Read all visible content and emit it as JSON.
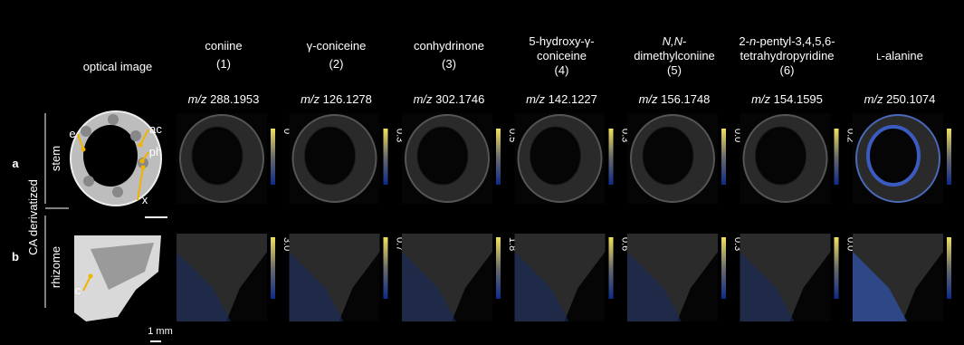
{
  "panel_labels": [
    "a",
    "b"
  ],
  "group_label": "CA derivatized",
  "optical_header": "optical image",
  "mz_prefix": "m/z",
  "rows": [
    {
      "label": "stem",
      "colorbar_max": [
        "0",
        "0.3",
        "0.5",
        "0.3",
        "0.0",
        "0.2"
      ]
    },
    {
      "label": "rhizome",
      "colorbar_max": [
        "3.0",
        "0.7",
        "1.8",
        "0.6",
        "0.3",
        "0.0"
      ]
    }
  ],
  "columns": [
    {
      "name": [
        [
          {
            "text": "coniine"
          }
        ]
      ],
      "number": "(1)",
      "mz": "288.1953"
    },
    {
      "name": [
        [
          {
            "text": "γ-coniceine"
          }
        ]
      ],
      "number": "(2)",
      "mz": "126.1278"
    },
    {
      "name": [
        [
          {
            "text": "conhydrinone"
          }
        ]
      ],
      "number": "(3)",
      "mz": "302.1746"
    },
    {
      "name": [
        [
          {
            "text": "5-hydroxy-γ-"
          }
        ],
        [
          {
            "text": "coniceine"
          }
        ]
      ],
      "number": "(4)",
      "mz": "142.1227"
    },
    {
      "name": [
        [
          {
            "text": "N,N",
            "italic": true
          },
          {
            "text": "-"
          }
        ],
        [
          {
            "text": "dimethylconiine"
          }
        ]
      ],
      "number": "(5)",
      "mz": "156.1748"
    },
    {
      "name": [
        [
          {
            "text": "2-"
          },
          {
            "text": "n",
            "italic": true
          },
          {
            "text": "-pentyl-3,4,5,6-"
          }
        ],
        [
          {
            "text": "tetrahydropyridine"
          }
        ]
      ],
      "number": "(6)",
      "mz": "154.1595"
    },
    {
      "name": [
        [
          {
            "text": "L",
            "small_caps": true
          },
          {
            "text": "-alanine"
          }
        ]
      ],
      "mz": "250.1074"
    }
  ],
  "annotations": [
    "e",
    "ac",
    "ph",
    "x",
    "c"
  ],
  "scale_bar": "1 mm"
}
